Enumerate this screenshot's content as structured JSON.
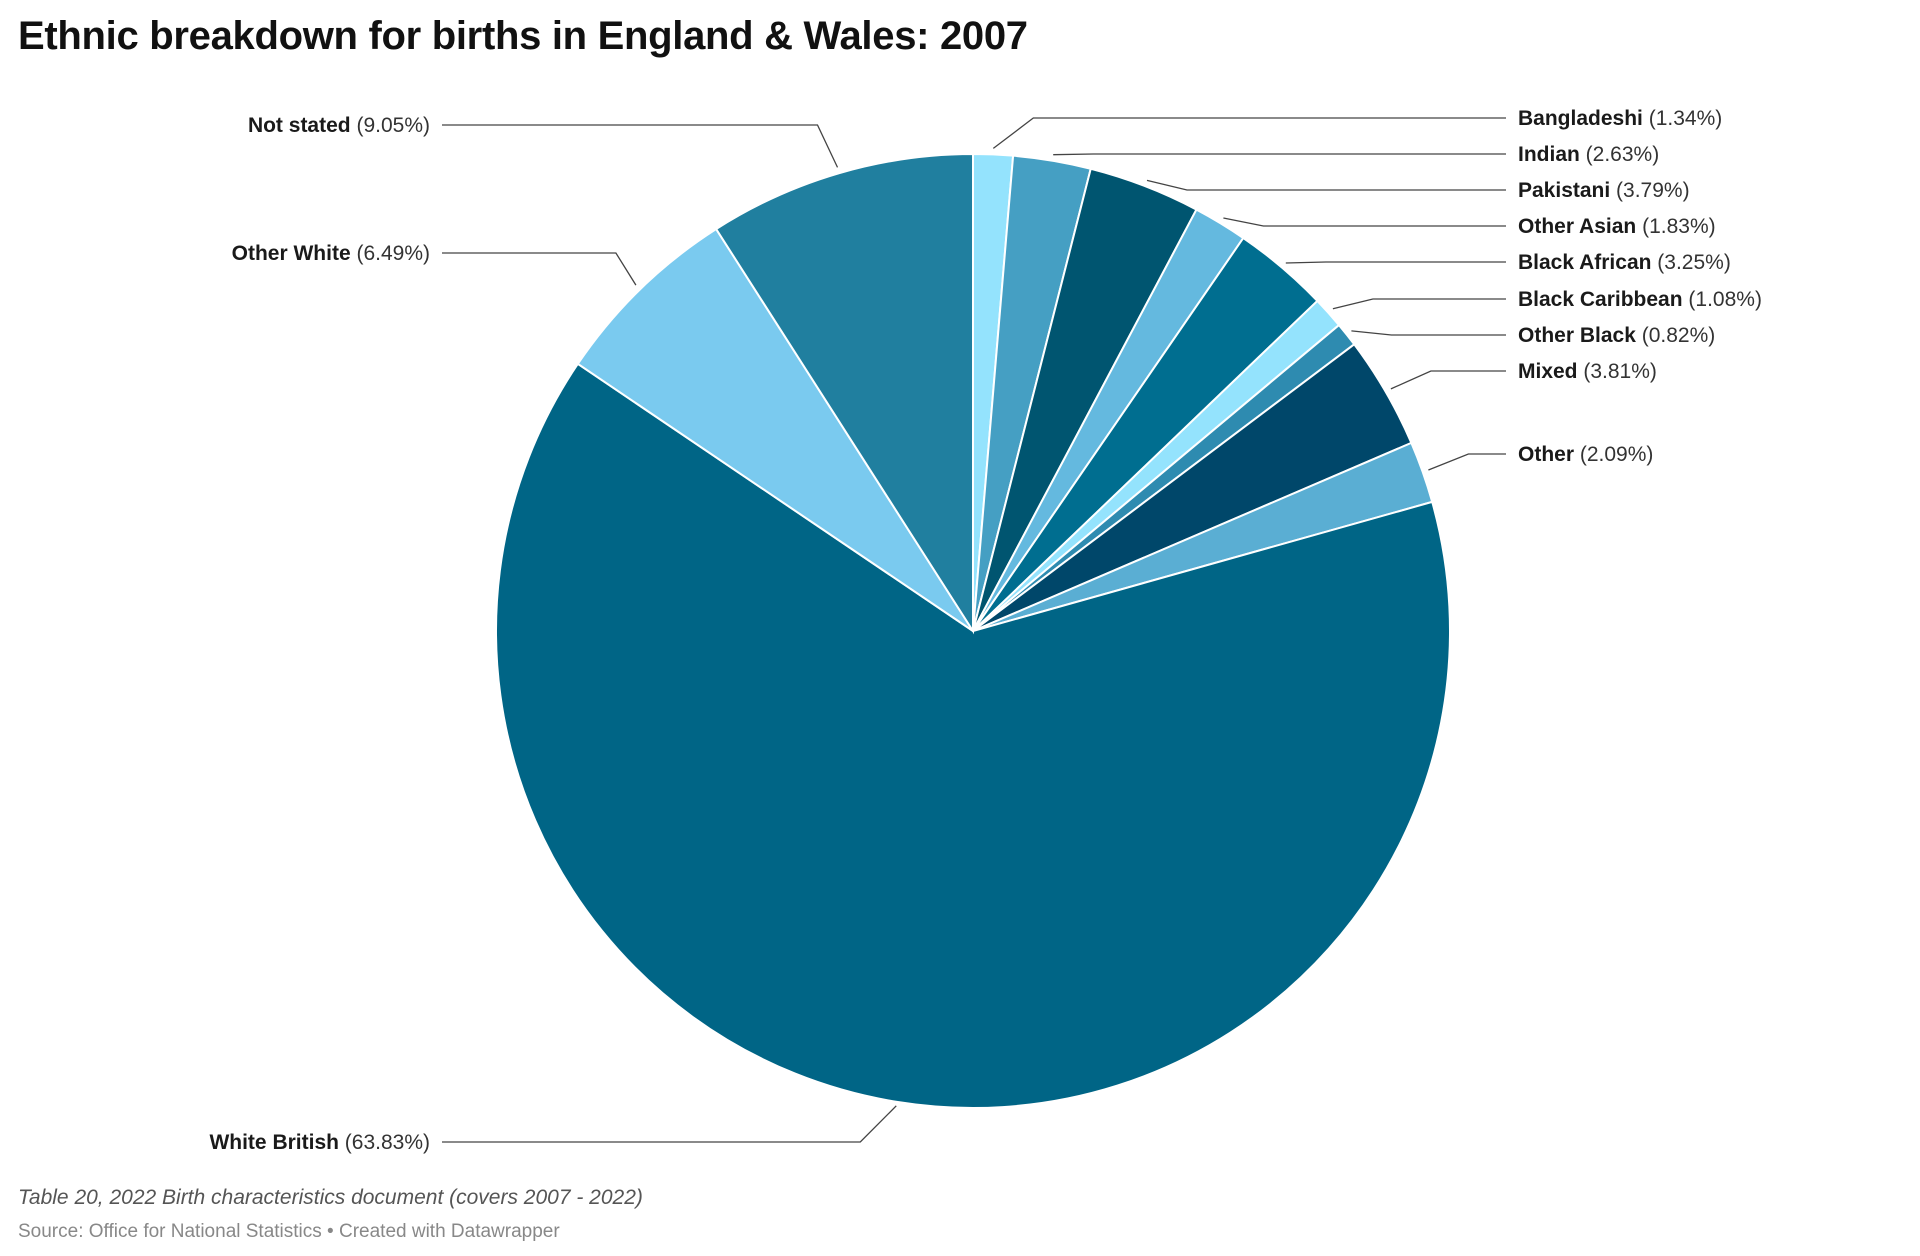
{
  "title": "Ethnic breakdown for births in England & Wales: 2007",
  "footnote": "Table 20, 2022 Birth characteristics document (covers 2007 - 2022)",
  "source_line": "Source: Office for National Statistics • Created with Datawrapper",
  "chart_data": {
    "type": "pie",
    "title": "Ethnic breakdown for births in England & Wales: 2007",
    "start": "12 o'clock, clockwise",
    "slices": [
      {
        "name": "Bangladeshi",
        "value": 1.34,
        "label": "(1.34%)",
        "color": "#94e3fd"
      },
      {
        "name": "Indian",
        "value": 2.63,
        "label": "(2.63%)",
        "color": "#459fc3"
      },
      {
        "name": "Pakistani",
        "value": 3.79,
        "label": "(3.79%)",
        "color": "#005570"
      },
      {
        "name": "Other Asian",
        "value": 1.83,
        "label": "(1.83%)",
        "color": "#64b9df"
      },
      {
        "name": "Black African",
        "value": 3.25,
        "label": "(3.25%)",
        "color": "#006e90"
      },
      {
        "name": "Black Caribbean",
        "value": 1.08,
        "label": "(1.08%)",
        "color": "#94e3fd"
      },
      {
        "name": "Other Black",
        "value": 0.82,
        "label": "(0.82%)",
        "color": "#2e8bb0"
      },
      {
        "name": "Mixed",
        "value": 3.81,
        "label": "(3.81%)",
        "color": "#00476a"
      },
      {
        "name": "Other",
        "value": 2.09,
        "label": "(2.09%)",
        "color": "#5aaed3"
      },
      {
        "name": "White British",
        "value": 63.83,
        "label": "(63.83%)",
        "color": "#006586"
      },
      {
        "name": "Other White",
        "value": 6.49,
        "label": "(6.49%)",
        "color": "#7acaef"
      },
      {
        "name": "Not stated",
        "value": 9.05,
        "label": "(9.05%)",
        "color": "#207f9f"
      }
    ]
  }
}
